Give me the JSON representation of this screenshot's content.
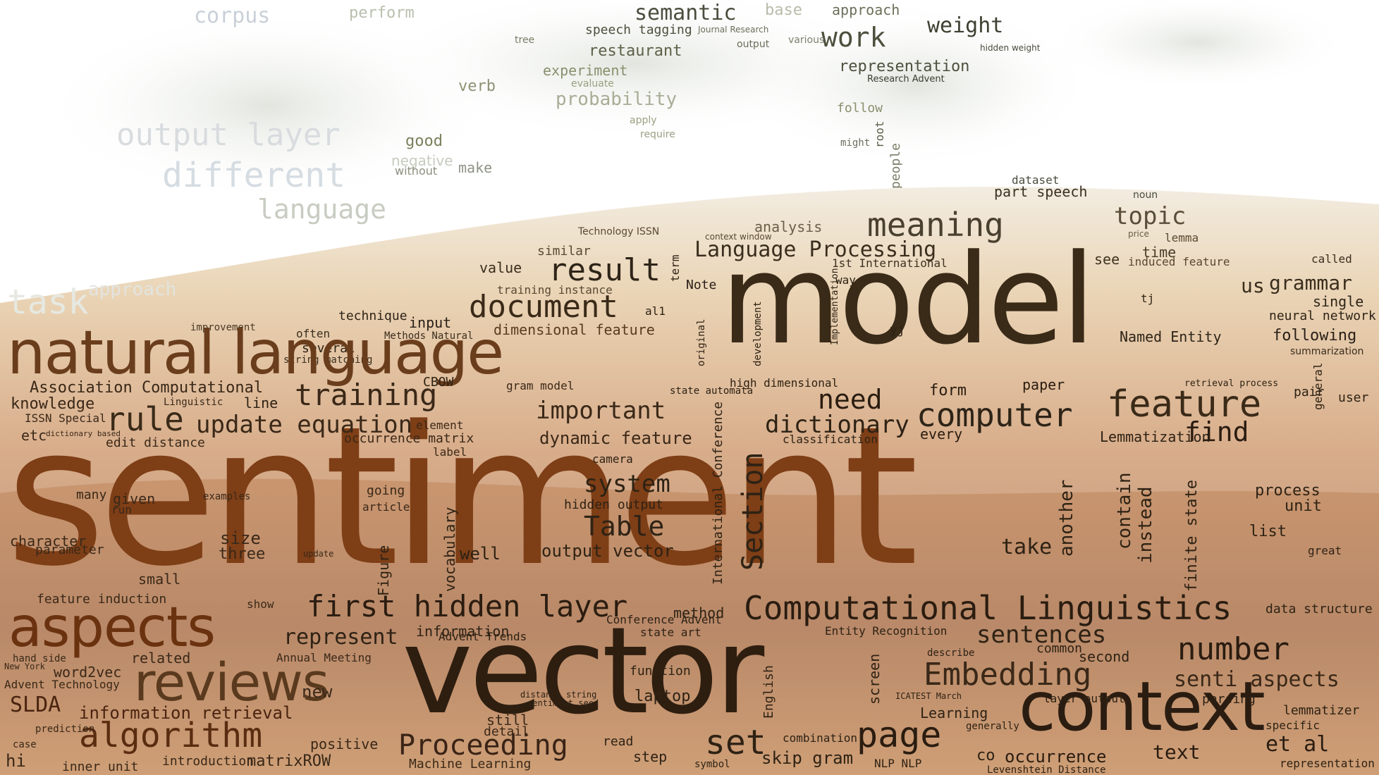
{
  "palette": {
    "sky": "#ffffff",
    "cloud_light": "#e6e9e2",
    "cloud_mid": "#c8ccc2",
    "cloud_olive": "#9aa082",
    "earth_dark": "#2a1f14",
    "earth_brown": "#5a3a1e",
    "earth_rust": "#9a4a1c",
    "earth_orange": "#c8762e",
    "earth_sand": "#d9a15a",
    "earth_gold": "#b89048"
  },
  "words": {
    "sentiment": "sentiment",
    "model": "model",
    "vector": "vector",
    "natural_language": "natural language",
    "context": "context",
    "reviews": "reviews",
    "aspects": "aspects",
    "computational_linguistics": "Computational Linguistics",
    "algorithm": "algorithm",
    "embedding": "Embedding",
    "feature": "feature",
    "computer": "computer",
    "meaning": "meaning",
    "document": "document",
    "result": "result",
    "training": "training",
    "first_hidden_layer": "first hidden layer",
    "proceeding": "Proceeding",
    "page": "page",
    "set": "set",
    "number": "number",
    "table": "Table",
    "section": "Section",
    "rule": "rule",
    "update_equation": "update equation",
    "dictionary": "dictionary",
    "need": "need",
    "language_processing": "Language Processing",
    "topic": "topic",
    "grammar": "grammar",
    "semantic": "semantic",
    "work": "work",
    "weight": "weight",
    "important": "important",
    "system": "system",
    "sentences": "sentences",
    "senti_aspects": "senti aspects",
    "et_al": "et al",
    "find": "find",
    "us": "us",
    "laptop": "laptop",
    "take": "take",
    "text": "text",
    "occurrence": "occurrence",
    "skip_gram": "skip gram",
    "slda": "SLDA",
    "represent": "represent",
    "information_retrieval": "information retrieval",
    "output_vector": "output vector",
    "hidden_output": "hidden output",
    "dynamic_feature": "dynamic feature",
    "association_computational": "Association Computational",
    "knowledge": "knowledge",
    "feature_induction": "feature induction",
    "different": "different",
    "language_faded": "language",
    "output_layer": "output layer",
    "task": "task",
    "corpus": "corpus",
    "probability": "probability",
    "restaurant": "restaurant",
    "experiment": "experiment",
    "representation": "representation",
    "good": "good",
    "part_speech": "part speech",
    "analysis": "analysis",
    "named_entity": "Named Entity",
    "following": "following",
    "neural_network": "neural network",
    "single": "single",
    "lemmatization": "Lemmatization",
    "process": "process",
    "list": "list",
    "unit": "unit",
    "second": "second",
    "common": "common",
    "learning": "Learning",
    "machine_learning": "Machine Learning",
    "new": "new",
    "word2vec": "word2vec",
    "related": "related",
    "three": "three",
    "size": "size",
    "small": "small",
    "character": "character",
    "parameter": "parameter",
    "well": "well",
    "function": "function",
    "method": "method",
    "information": "information",
    "instead": "instead",
    "contain": "contain",
    "another": "another",
    "finite_state": "finite state",
    "screen": "screen",
    "english": "English",
    "figure": "Figure",
    "international_conference": "International Conference",
    "levenshtein_distance": "Levenshtein Distance",
    "combination": "combination",
    "inner_unit": "inner unit",
    "matrixrow": "matrixROW",
    "positive": "positive",
    "introduction": "introduction",
    "detail": "detail",
    "still": "still",
    "paper": "paper",
    "form": "form",
    "every": "every",
    "examples": "examples",
    "going": "going",
    "article": "article",
    "many": "many",
    "given": "given",
    "run": "run",
    "label": "label",
    "element": "element",
    "cbow": "CBOW",
    "line": "line",
    "etc": "etc",
    "edit_distance": "edit distance",
    "occurrence_matrix": "occurrence matrix",
    "classification": "classification",
    "high_dimensional": "high dimensional",
    "vocabulary": "vocabulary",
    "lemmatizer": "lemmatizer",
    "specific": "specific",
    "representation_small": "representation",
    "data_structure": "data structure",
    "parsing": "parsing",
    "great": "great",
    "user": "user",
    "pair": "pair",
    "general": "general",
    "called": "called",
    "summarization": "summarization",
    "time": "time",
    "lemma": "lemma",
    "see": "see",
    "induced_feature": "induced feature",
    "value": "value",
    "similar": "similar",
    "training_instance": "training instance",
    "technique": "technique",
    "input": "input",
    "improvement": "improvement",
    "often": "often",
    "several": "several",
    "string_matching": "string matching",
    "methods_natural": "Methods Natural",
    "dimensional_feature": "dimensional feature",
    "gram_model": "gram model",
    "state_automata": "state automata",
    "note": "Note",
    "term": "term",
    "first_international": "1st International",
    "way": "way",
    "technology_issn": "Technology ISSN",
    "context_window": "context window",
    "research_advent": "Research Advent",
    "follow": "follow",
    "might": "might",
    "root": "root",
    "people": "people",
    "make": "make",
    "without": "without",
    "verb": "verb",
    "evaluate": "evaluate",
    "apply": "apply",
    "require": "require",
    "speech_tagging": "speech tagging",
    "journal_research": "Journal Research",
    "tree": "tree",
    "output": "output",
    "various": "various",
    "base": "base",
    "approach": "approach",
    "perform": "perform",
    "dataset": "dataset",
    "noun": "noun",
    "price": "price",
    "negative": "negative",
    "faded_approach": "approach",
    "show": "show",
    "hand_side": "hand side",
    "advent_technology": "Advent Technology",
    "new_york": "New York",
    "annual_meeting": "Annual Meeting",
    "state_art": "state art",
    "entity_recognition": "Entity Recognition",
    "advent_trends": "Advent Trends",
    "conference_advent": "Conference Advent",
    "describe": "describe",
    "generally": "generally",
    "layer_output": "layer output",
    "icatest_march": "ICATEST March",
    "camera": "camera",
    "development": "development",
    "implementation": "Implementation",
    "original": "original",
    "yj": "yj",
    "tj": "tj",
    "co": "co",
    "nlp_nlp": "NLP NLP",
    "step": "step",
    "symbol": "symbol",
    "read": "read",
    "prediction": "prediction",
    "hi": "hi",
    "case": "case",
    "distance_string": "distance string",
    "sentiment_seed": "sentiment seed",
    "al1": "al1",
    "retrieval_process": "retrieval process",
    "hidden_weight": "hidden weight",
    "issn_special": "ISSN Special",
    "linguistic": "Linguistic",
    "update": "update",
    "dictionary_based": "dictionary based"
  }
}
